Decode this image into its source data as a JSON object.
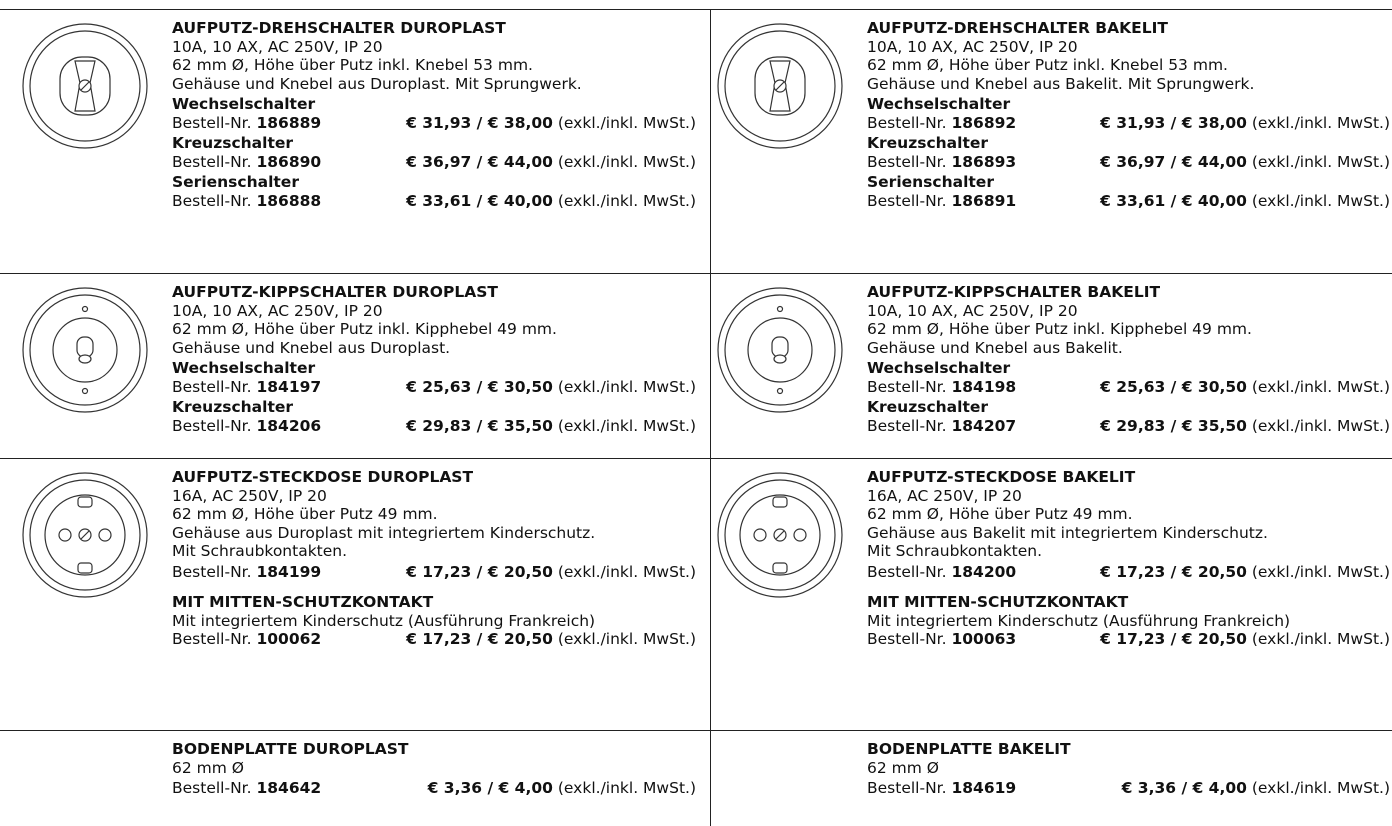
{
  "products": [
    {
      "title": "AUFPUTZ-DREHSCHALTER DUROPLAST",
      "lines": [
        "10A, 10 AX, AC 250V, IP 20",
        "62 mm Ø, Höhe über Putz inkl. Knebel 53 mm.",
        "Gehäuse und Knebel aus Duroplast. Mit Sprungwerk."
      ],
      "variants": [
        {
          "name": "Wechselschalter",
          "order_label": "Bestell-Nr.",
          "order_no": "186889",
          "price": "€ 31,93 / € 38,00",
          "price_note": "(exkl./inkl. MwSt.)"
        },
        {
          "name": "Kreuzschalter",
          "order_label": "Bestell-Nr.",
          "order_no": "186890",
          "price": "€ 36,97 / € 44,00",
          "price_note": "(exkl./inkl. MwSt.)"
        },
        {
          "name": "Serienschalter",
          "order_label": "Bestell-Nr.",
          "order_no": "186888",
          "price": "€ 33,61 / € 40,00",
          "price_note": "(exkl./inkl. MwSt.)"
        }
      ]
    },
    {
      "title": "AUFPUTZ-DREHSCHALTER BAKELIT",
      "lines": [
        "10A, 10 AX, AC 250V, IP 20",
        "62 mm Ø, Höhe über Putz inkl. Knebel 53 mm.",
        "Gehäuse und Knebel aus Bakelit. Mit Sprungwerk."
      ],
      "variants": [
        {
          "name": "Wechselschalter",
          "order_label": "Bestell-Nr.",
          "order_no": "186892",
          "price": "€ 31,93 / € 38,00",
          "price_note": "(exkl./inkl. MwSt.)"
        },
        {
          "name": "Kreuzschalter",
          "order_label": "Bestell-Nr.",
          "order_no": "186893",
          "price": "€ 36,97 / € 44,00",
          "price_note": "(exkl./inkl. MwSt.)"
        },
        {
          "name": "Serienschalter",
          "order_label": "Bestell-Nr.",
          "order_no": "186891",
          "price": "€ 33,61 / € 40,00",
          "price_note": "(exkl./inkl. MwSt.)"
        }
      ]
    },
    {
      "title": "AUFPUTZ-KIPPSCHALTER DUROPLAST",
      "lines": [
        "10A, 10 AX, AC 250V, IP 20",
        "62 mm Ø, Höhe über Putz inkl. Kipphebel 49 mm.",
        "Gehäuse und Knebel aus Duroplast."
      ],
      "variants": [
        {
          "name": "Wechselschalter",
          "order_label": "Bestell-Nr.",
          "order_no": "184197",
          "price": "€ 25,63 / € 30,50",
          "price_note": "(exkl./inkl. MwSt.)"
        },
        {
          "name": "Kreuzschalter",
          "order_label": "Bestell-Nr.",
          "order_no": "184206",
          "price": "€ 29,83 / € 35,50",
          "price_note": "(exkl./inkl. MwSt.)"
        }
      ]
    },
    {
      "title": "AUFPUTZ-KIPPSCHALTER BAKELIT",
      "lines": [
        "10A, 10 AX, AC 250V, IP 20",
        "62 mm Ø, Höhe über Putz inkl. Kipphebel 49 mm.",
        "Gehäuse und Knebel aus Bakelit."
      ],
      "variants": [
        {
          "name": "Wechselschalter",
          "order_label": "Bestell-Nr.",
          "order_no": "184198",
          "price": "€ 25,63 / € 30,50",
          "price_note": "(exkl./inkl. MwSt.)"
        },
        {
          "name": "Kreuzschalter",
          "order_label": "Bestell-Nr.",
          "order_no": "184207",
          "price": "€ 29,83 / € 35,50",
          "price_note": "(exkl./inkl. MwSt.)"
        }
      ]
    },
    {
      "title": "AUFPUTZ-STECKDOSE DUROPLAST",
      "lines": [
        "16A, AC 250V, IP 20",
        "62 mm Ø, Höhe über Putz 49 mm.",
        "Gehäuse aus Duroplast mit integriertem Kinderschutz.",
        "Mit Schraubkontakten."
      ],
      "variants": [
        {
          "order_label": "Bestell-Nr.",
          "order_no": "184199",
          "price": "€ 17,23 / € 20,50",
          "price_note": "(exkl./inkl. MwSt.)"
        },
        {
          "name": "MIT MITTEN-SCHUTZKONTAKT",
          "description": "Mit integriertem Kinderschutz (Ausführung Frankreich)",
          "order_label": "Bestell-Nr.",
          "order_no": "100062",
          "price": "€ 17,23 / € 20,50",
          "price_note": "(exkl./inkl. MwSt.)"
        }
      ]
    },
    {
      "title": "AUFPUTZ-STECKDOSE BAKELIT",
      "lines": [
        "16A, AC 250V, IP 20",
        "62 mm Ø, Höhe über Putz 49 mm.",
        "Gehäuse aus Bakelit mit integriertem Kinderschutz.",
        "Mit Schraubkontakten."
      ],
      "variants": [
        {
          "order_label": "Bestell-Nr.",
          "order_no": "184200",
          "price": "€ 17,23 / € 20,50",
          "price_note": "(exkl./inkl. MwSt.)"
        },
        {
          "name": "MIT MITTEN-SCHUTZKONTAKT",
          "description": "Mit integriertem Kinderschutz (Ausführung Frankreich)",
          "order_label": "Bestell-Nr.",
          "order_no": "100063",
          "price": "€ 17,23 / € 20,50",
          "price_note": "(exkl./inkl. MwSt.)"
        }
      ]
    },
    {
      "title": "BODENPLATTE DUROPLAST",
      "lines": [
        "62 mm Ø"
      ],
      "variants": [
        {
          "order_label": "Bestell-Nr.",
          "order_no": "184642",
          "price": "€ 3,36 / € 4,00",
          "price_note": "(exkl./inkl. MwSt.)"
        }
      ]
    },
    {
      "title": "BODENPLATTE BAKELIT",
      "lines": [
        "62 mm Ø"
      ],
      "variants": [
        {
          "order_label": "Bestell-Nr.",
          "order_no": "184619",
          "price": "€ 3,36 / € 4,00",
          "price_note": "(exkl./inkl. MwSt.)"
        }
      ]
    }
  ]
}
